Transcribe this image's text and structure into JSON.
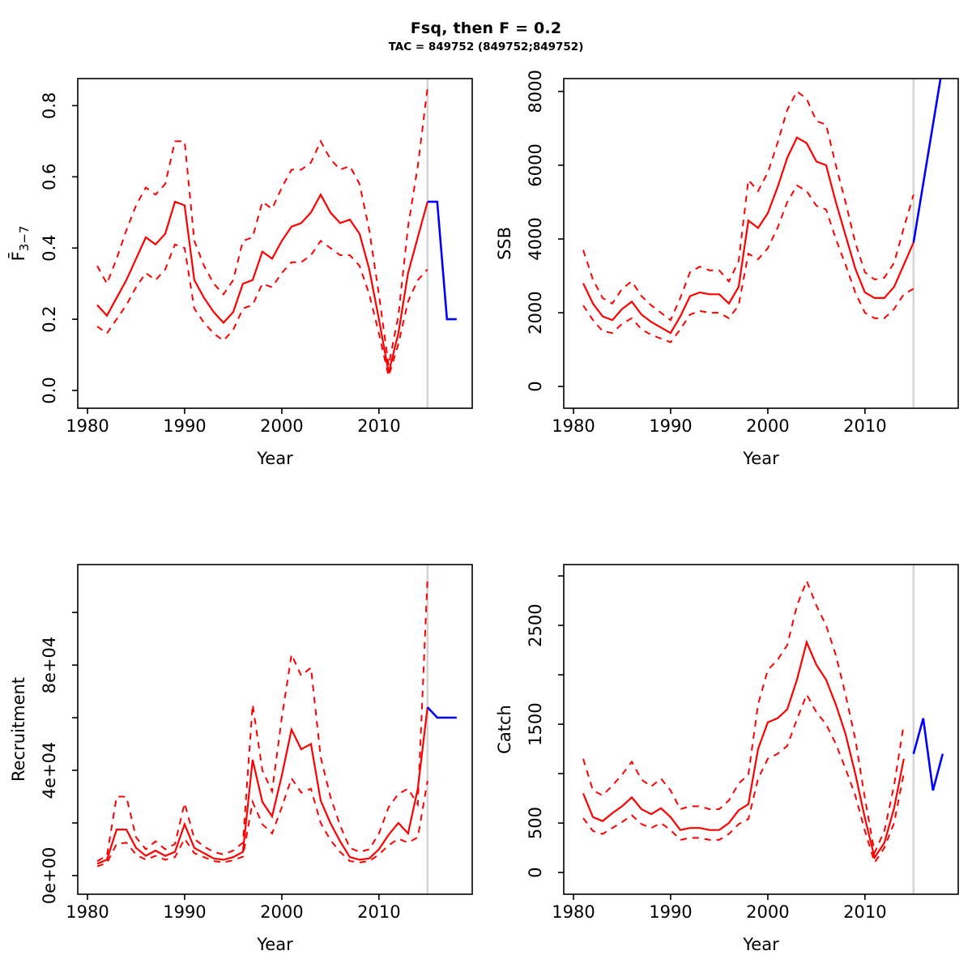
{
  "header": {
    "title": "Fsq, then F = 0.2",
    "subtitle": "TAC = 849752 (849752;849752)"
  },
  "colors": {
    "median": "#ff0000",
    "interval": "#ff0000",
    "forecast": "#0000ff",
    "divider": "#d3d3d3",
    "axis": "#000000"
  },
  "divider_year": 2015,
  "x_axis": {
    "label": "Year",
    "ticks": [
      1980,
      1990,
      2000,
      2010
    ],
    "range": [
      1979,
      2019.6
    ]
  },
  "chart_data": [
    {
      "type": "line",
      "position": "top-left",
      "ylabel": {
        "text": "F̄",
        "sub": "3−7"
      },
      "ylim": [
        -0.05,
        0.876
      ],
      "ytick_values": [
        0.0,
        0.2,
        0.4,
        0.6,
        0.8
      ],
      "ytick_labels": [
        "0.0",
        "0.2",
        "0.4",
        "0.6",
        "0.8"
      ],
      "x": [
        1981,
        1982,
        1983,
        1984,
        1985,
        1986,
        1987,
        1988,
        1989,
        1990,
        1991,
        1992,
        1993,
        1994,
        1995,
        1996,
        1997,
        1998,
        1999,
        2000,
        2001,
        2002,
        2003,
        2004,
        2005,
        2006,
        2007,
        2008,
        2009,
        2010,
        2011,
        2012,
        2013,
        2014,
        2015
      ],
      "series": {
        "median": [
          0.24,
          0.21,
          0.26,
          0.31,
          0.37,
          0.43,
          0.41,
          0.44,
          0.53,
          0.52,
          0.31,
          0.26,
          0.22,
          0.19,
          0.22,
          0.3,
          0.31,
          0.39,
          0.37,
          0.42,
          0.46,
          0.47,
          0.5,
          0.55,
          0.5,
          0.47,
          0.48,
          0.44,
          0.34,
          0.2,
          0.05,
          0.16,
          0.33,
          0.43,
          0.53
        ],
        "upper": [
          0.35,
          0.3,
          0.37,
          0.45,
          0.52,
          0.57,
          0.55,
          0.58,
          0.7,
          0.7,
          0.42,
          0.35,
          0.3,
          0.27,
          0.31,
          0.42,
          0.43,
          0.53,
          0.51,
          0.57,
          0.62,
          0.62,
          0.64,
          0.7,
          0.65,
          0.62,
          0.63,
          0.58,
          0.45,
          0.27,
          0.07,
          0.21,
          0.46,
          0.63,
          0.85
        ],
        "lower": [
          0.18,
          0.16,
          0.2,
          0.24,
          0.29,
          0.33,
          0.31,
          0.34,
          0.41,
          0.4,
          0.23,
          0.19,
          0.16,
          0.14,
          0.17,
          0.23,
          0.24,
          0.3,
          0.29,
          0.33,
          0.36,
          0.36,
          0.38,
          0.42,
          0.4,
          0.38,
          0.38,
          0.35,
          0.27,
          0.16,
          0.04,
          0.13,
          0.25,
          0.31,
          0.34
        ],
        "forecast": {
          "x": [
            2015,
            2016,
            2017,
            2018
          ],
          "y": [
            0.53,
            0.53,
            0.2,
            0.2
          ]
        }
      }
    },
    {
      "type": "line",
      "position": "top-right",
      "ylabel": {
        "text": "SSB",
        "sub": ""
      },
      "ylim": [
        -590,
        8350
      ],
      "ytick_values": [
        0,
        2000,
        4000,
        6000,
        8000
      ],
      "ytick_labels": [
        "0",
        "2000",
        "4000",
        "6000",
        "8000"
      ],
      "x": [
        1981,
        1982,
        1983,
        1984,
        1985,
        1986,
        1987,
        1988,
        1989,
        1990,
        1991,
        1992,
        1993,
        1994,
        1995,
        1996,
        1997,
        1998,
        1999,
        2000,
        2001,
        2002,
        2003,
        2004,
        2005,
        2006,
        2007,
        2008,
        2009,
        2010,
        2011,
        2012,
        2013,
        2014,
        2015
      ],
      "series": {
        "median": [
          2800,
          2250,
          1900,
          1800,
          2100,
          2300,
          1950,
          1750,
          1600,
          1450,
          1900,
          2450,
          2550,
          2500,
          2500,
          2250,
          2700,
          4500,
          4300,
          4700,
          5400,
          6200,
          6750,
          6600,
          6100,
          6000,
          5000,
          4100,
          3200,
          2550,
          2400,
          2400,
          2700,
          3300,
          3900
        ],
        "upper": [
          3700,
          2900,
          2400,
          2250,
          2650,
          2850,
          2450,
          2200,
          2000,
          1800,
          2400,
          3100,
          3250,
          3150,
          3150,
          2850,
          3400,
          5600,
          5300,
          5800,
          6600,
          7500,
          8000,
          7800,
          7200,
          7100,
          6000,
          5000,
          3900,
          3100,
          2900,
          2950,
          3350,
          4300,
          5200
        ],
        "lower": [
          2200,
          1800,
          1500,
          1450,
          1700,
          1850,
          1550,
          1400,
          1300,
          1200,
          1550,
          1950,
          2050,
          2000,
          2000,
          1850,
          2200,
          3600,
          3450,
          3750,
          4300,
          5000,
          5450,
          5300,
          4900,
          4800,
          4000,
          3300,
          2550,
          2000,
          1850,
          1850,
          2100,
          2500,
          2650
        ],
        "forecast": {
          "x": [
            2015,
            2016,
            2017,
            2018
          ],
          "y": [
            3900,
            5500,
            7100,
            8700
          ]
        }
      }
    },
    {
      "type": "line",
      "position": "bottom-left",
      "ylabel": {
        "text": "Recruitment",
        "sub": ""
      },
      "ylim": [
        -7100,
        118200
      ],
      "ytick_values": [
        0,
        20000,
        40000,
        60000,
        80000,
        100000
      ],
      "ytick_labels": [
        "0e+00",
        "",
        "4e+04",
        "",
        "8e+04",
        ""
      ],
      "x": [
        1981,
        1982,
        1983,
        1984,
        1985,
        1986,
        1987,
        1988,
        1989,
        1990,
        1991,
        1992,
        1993,
        1994,
        1995,
        1996,
        1997,
        1998,
        1999,
        2000,
        2001,
        2002,
        2003,
        2004,
        2005,
        2006,
        2007,
        2008,
        2009,
        2010,
        2011,
        2012,
        2013,
        2014,
        2015
      ],
      "series": {
        "median": [
          4500,
          6000,
          17500,
          17500,
          10500,
          7500,
          9500,
          7500,
          9000,
          19500,
          10500,
          8500,
          6500,
          6000,
          7000,
          9000,
          44000,
          28000,
          22500,
          38000,
          55500,
          48000,
          50000,
          28500,
          20000,
          13000,
          7000,
          6000,
          6500,
          10000,
          15500,
          20000,
          16000,
          33000,
          64000
        ],
        "upper": [
          5500,
          7500,
          30000,
          30000,
          14500,
          10000,
          13000,
          10000,
          12000,
          27500,
          14000,
          11000,
          9000,
          8000,
          9500,
          12500,
          65000,
          40000,
          32000,
          60000,
          84000,
          76000,
          79000,
          45000,
          30000,
          19000,
          10500,
          9000,
          10000,
          16000,
          26000,
          31000,
          33000,
          27000,
          113000
        ],
        "lower": [
          3500,
          4800,
          12000,
          12500,
          8000,
          6000,
          7500,
          6000,
          7000,
          14000,
          8500,
          7000,
          5500,
          5000,
          5800,
          7200,
          28000,
          19500,
          16000,
          26000,
          37000,
          31500,
          33000,
          20000,
          13500,
          9000,
          5500,
          5000,
          5500,
          8000,
          11500,
          14000,
          12500,
          14500,
          36000
        ],
        "forecast": {
          "x": [
            2015,
            2016,
            2017,
            2018
          ],
          "y": [
            64000,
            60000,
            60000,
            60000
          ]
        }
      }
    },
    {
      "type": "line",
      "position": "bottom-right",
      "ylabel": {
        "text": "Catch",
        "sub": ""
      },
      "ylim": [
        -220,
        3115
      ],
      "ytick_values": [
        0,
        500,
        1000,
        1500,
        2000,
        2500,
        3000
      ],
      "ytick_labels": [
        "0",
        "500",
        "",
        "1500",
        "",
        "2500",
        ""
      ],
      "x": [
        1981,
        1982,
        1983,
        1984,
        1985,
        1986,
        1987,
        1988,
        1989,
        1990,
        1991,
        1992,
        1993,
        1994,
        1995,
        1996,
        1997,
        1998,
        1999,
        2000,
        2001,
        2002,
        2003,
        2004,
        2005,
        2006,
        2007,
        2008,
        2009,
        2010,
        2011,
        2012,
        2013,
        2014
      ],
      "series": {
        "median": [
          800,
          560,
          520,
          600,
          670,
          760,
          640,
          590,
          650,
          560,
          430,
          450,
          450,
          430,
          430,
          500,
          630,
          690,
          1250,
          1520,
          1560,
          1650,
          1950,
          2330,
          2100,
          1950,
          1700,
          1400,
          1000,
          550,
          150,
          300,
          650,
          1150
        ],
        "upper": [
          1150,
          830,
          780,
          880,
          990,
          1120,
          940,
          870,
          950,
          830,
          640,
          670,
          670,
          640,
          640,
          730,
          900,
          990,
          1700,
          2050,
          2150,
          2300,
          2700,
          2950,
          2700,
          2500,
          2200,
          1800,
          1350,
          750,
          200,
          420,
          880,
          1500
        ],
        "lower": [
          550,
          420,
          390,
          450,
          510,
          580,
          490,
          450,
          500,
          430,
          330,
          350,
          350,
          330,
          330,
          390,
          490,
          540,
          950,
          1150,
          1200,
          1280,
          1550,
          1800,
          1620,
          1500,
          1300,
          1050,
          780,
          420,
          100,
          250,
          500,
          1000
        ],
        "forecast": {
          "x": [
            2015,
            2016,
            2017,
            2018
          ],
          "y": [
            1200,
            1560,
            830,
            1200
          ]
        }
      }
    }
  ]
}
